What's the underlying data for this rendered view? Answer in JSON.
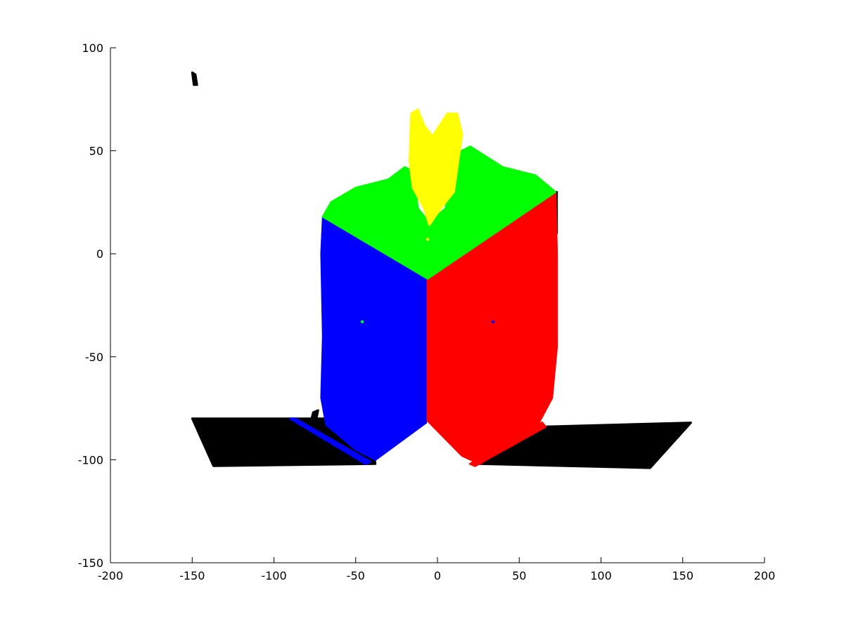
{
  "chart_data": {
    "type": "scatter",
    "title": "",
    "xlabel": "",
    "ylabel": "",
    "xlim": [
      -200,
      200
    ],
    "ylim": [
      -150,
      100
    ],
    "xticks": [
      -200,
      -150,
      -100,
      -50,
      0,
      50,
      100,
      150,
      200
    ],
    "yticks": [
      -150,
      -100,
      -50,
      0,
      50,
      100
    ],
    "xtick_labels": [
      "-200",
      "-150",
      "-100",
      "-50",
      "0",
      "50",
      "100",
      "150",
      "200"
    ],
    "ytick_labels": [
      "-150",
      "-100",
      "-50",
      "0",
      "50",
      "100"
    ],
    "grid": false,
    "legend": "none",
    "series": [
      {
        "color": "#000000",
        "regions": [
          {
            "points": [
              [
                -150,
                88
              ],
              [
                -148,
                87
              ],
              [
                -147,
                82
              ],
              [
                -149,
                82
              ]
            ]
          },
          {
            "points": [
              [
                -150,
                -80
              ],
              [
                -42,
                -80
              ],
              [
                -38,
                -102
              ],
              [
                -137,
                -103
              ]
            ]
          },
          {
            "points": [
              [
                22,
                -101
              ],
              [
                62,
                -84
              ],
              [
                155,
                -82
              ],
              [
                130,
                -104
              ],
              [
                25,
                -102
              ]
            ]
          },
          {
            "points": [
              [
                -6,
                -11
              ],
              [
                72,
                30
              ],
              [
                73,
                28
              ],
              [
                -6,
                -13
              ]
            ]
          },
          {
            "points": [
              [
                70,
                28
              ],
              [
                73,
                30
              ],
              [
                73,
                10
              ],
              [
                70,
                12
              ]
            ]
          },
          {
            "points": [
              [
                -76,
                -77
              ],
              [
                -73,
                -76
              ],
              [
                -74,
                -80
              ],
              [
                -77,
                -80
              ]
            ]
          },
          {
            "points": [
              [
                45,
                15
              ],
              [
                48,
                17
              ],
              [
                50,
                14
              ],
              [
                46,
                13
              ]
            ]
          }
        ]
      },
      {
        "color": "#0000ff",
        "regions": [
          {
            "points": [
              [
                -70,
                18
              ],
              [
                -7,
                -12
              ],
              [
                -7,
                -82
              ],
              [
                -38,
                -100
              ],
              [
                -50,
                -95
              ],
              [
                -68,
                -83
              ],
              [
                -71,
                -70
              ],
              [
                -70,
                -40
              ],
              [
                -71,
                0
              ]
            ]
          },
          {
            "points": [
              [
                -90,
                -80
              ],
              [
                -87,
                -80
              ],
              [
                -41,
                -101
              ],
              [
                -44,
                -102
              ]
            ]
          }
        ]
      },
      {
        "color": "#ff0000",
        "regions": [
          {
            "points": [
              [
                -6,
                -12
              ],
              [
                72,
                30
              ],
              [
                73,
                0
              ],
              [
                73,
                -45
              ],
              [
                70,
                -70
              ],
              [
                62,
                -82
              ],
              [
                26,
                -102
              ],
              [
                15,
                -98
              ],
              [
                -6,
                -81
              ]
            ]
          },
          {
            "points": [
              [
                20,
                -102
              ],
              [
                64,
                -82
              ],
              [
                66,
                -84
              ],
              [
                23,
                -103
              ]
            ]
          }
        ]
      },
      {
        "color": "#00ff00",
        "regions": [
          {
            "points": [
              [
                -70,
                18
              ],
              [
                -65,
                25
              ],
              [
                -50,
                32
              ],
              [
                -30,
                36
              ],
              [
                -20,
                42
              ],
              [
                -15,
                40
              ],
              [
                -12,
                22
              ],
              [
                -5,
                15
              ],
              [
                5,
                22
              ],
              [
                10,
                48
              ],
              [
                20,
                52
              ],
              [
                40,
                42
              ],
              [
                60,
                38
              ],
              [
                72,
                30
              ],
              [
                -6,
                -12
              ]
            ]
          }
        ]
      },
      {
        "color": "#ffff00",
        "regions": [
          {
            "points": [
              [
                -16,
                68
              ],
              [
                -12,
                70
              ],
              [
                -8,
                62
              ],
              [
                -3,
                57
              ],
              [
                2,
                63
              ],
              [
                6,
                68
              ],
              [
                12,
                68
              ],
              [
                15,
                58
              ],
              [
                10,
                30
              ],
              [
                2,
                22
              ],
              [
                -5,
                14
              ],
              [
                -8,
                22
              ],
              [
                -15,
                32
              ],
              [
                -17,
                45
              ]
            ]
          }
        ]
      }
    ],
    "points": [
      {
        "x": -46,
        "y": -33,
        "color": "#00ff00"
      },
      {
        "x": 34,
        "y": -33,
        "color": "#0000ff"
      },
      {
        "x": -6,
        "y": 7,
        "color": "#ffff00"
      }
    ]
  }
}
